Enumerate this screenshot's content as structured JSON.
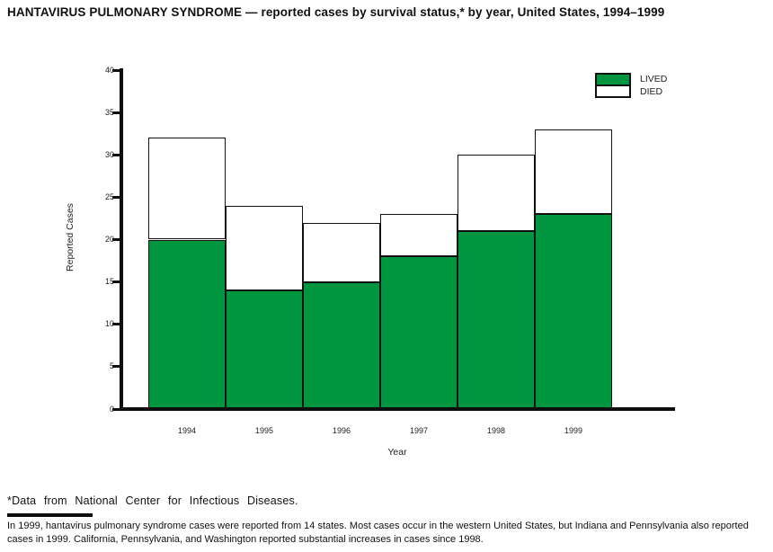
{
  "page": {
    "title": "HANTAVIRUS PULMONARY SYNDROME — reported cases by survival status,* by year, United States, 1994–1999",
    "footnote": "*Data from National Center for Infectious Diseases.",
    "note": "In 1999, hantavirus pulmonary syndrome cases were reported from 14 states. Most cases occur in the western United States, but Indiana and Pennsylvania also reported cases in 1999. California, Pennsylvania, and Washington reported substantial increases in cases since 1998."
  },
  "chart_data": {
    "type": "bar",
    "stacked": true,
    "title": "HANTAVIRUS PULMONARY SYNDROME — reported cases by survival status,* by year, United States, 1994–1999",
    "categories": [
      "1994",
      "1995",
      "1996",
      "1997",
      "1998",
      "1999"
    ],
    "series": [
      {
        "name": "LIVED",
        "color": "#009640",
        "values": [
          20,
          14,
          15,
          18,
          21,
          23
        ]
      },
      {
        "name": "DIED",
        "color": "#ffffff",
        "values": [
          12,
          10,
          7,
          5,
          9,
          10
        ]
      }
    ],
    "totals": [
      32,
      24,
      22,
      23,
      30,
      33
    ],
    "xlabel": "Year",
    "ylabel": "Reported Cases",
    "ylim": [
      0,
      40
    ],
    "yticks": [
      0,
      5,
      10,
      15,
      20,
      25,
      30,
      35,
      40
    ],
    "grid": false,
    "legend_position": "top-right",
    "bar_outline_color": "#111111"
  },
  "colors": {
    "lived_green": "#009640",
    "died_white": "#ffffff",
    "axis_black": "#0d0d0d"
  }
}
